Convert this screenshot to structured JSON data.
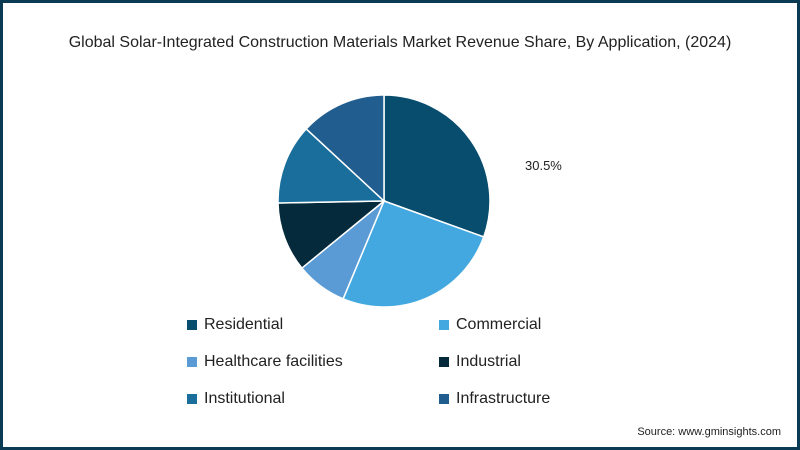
{
  "chart_data": {
    "type": "pie",
    "title": "Global Solar-Integrated Construction Materials Market Revenue Share, By Application,  (2024)",
    "slices": [
      {
        "name": "Residential",
        "value": 30.5,
        "color": "#084d6e",
        "label": "30.5%"
      },
      {
        "name": "Commercial",
        "value": 25.8,
        "color": "#43a8df",
        "label": ""
      },
      {
        "name": "Healthcare facilities",
        "value": 7.8,
        "color": "#5b9bd5",
        "label": ""
      },
      {
        "name": "Industrial",
        "value": 10.6,
        "color": "#042a3c",
        "label": ""
      },
      {
        "name": "Institutional",
        "value": 12.2,
        "color": "#1a6e9c",
        "label": ""
      },
      {
        "name": "Infrastructure",
        "value": 13.1,
        "color": "#215d8f",
        "label": ""
      }
    ],
    "legend_position": "bottom",
    "source": "Source: www.gminsights.com"
  }
}
